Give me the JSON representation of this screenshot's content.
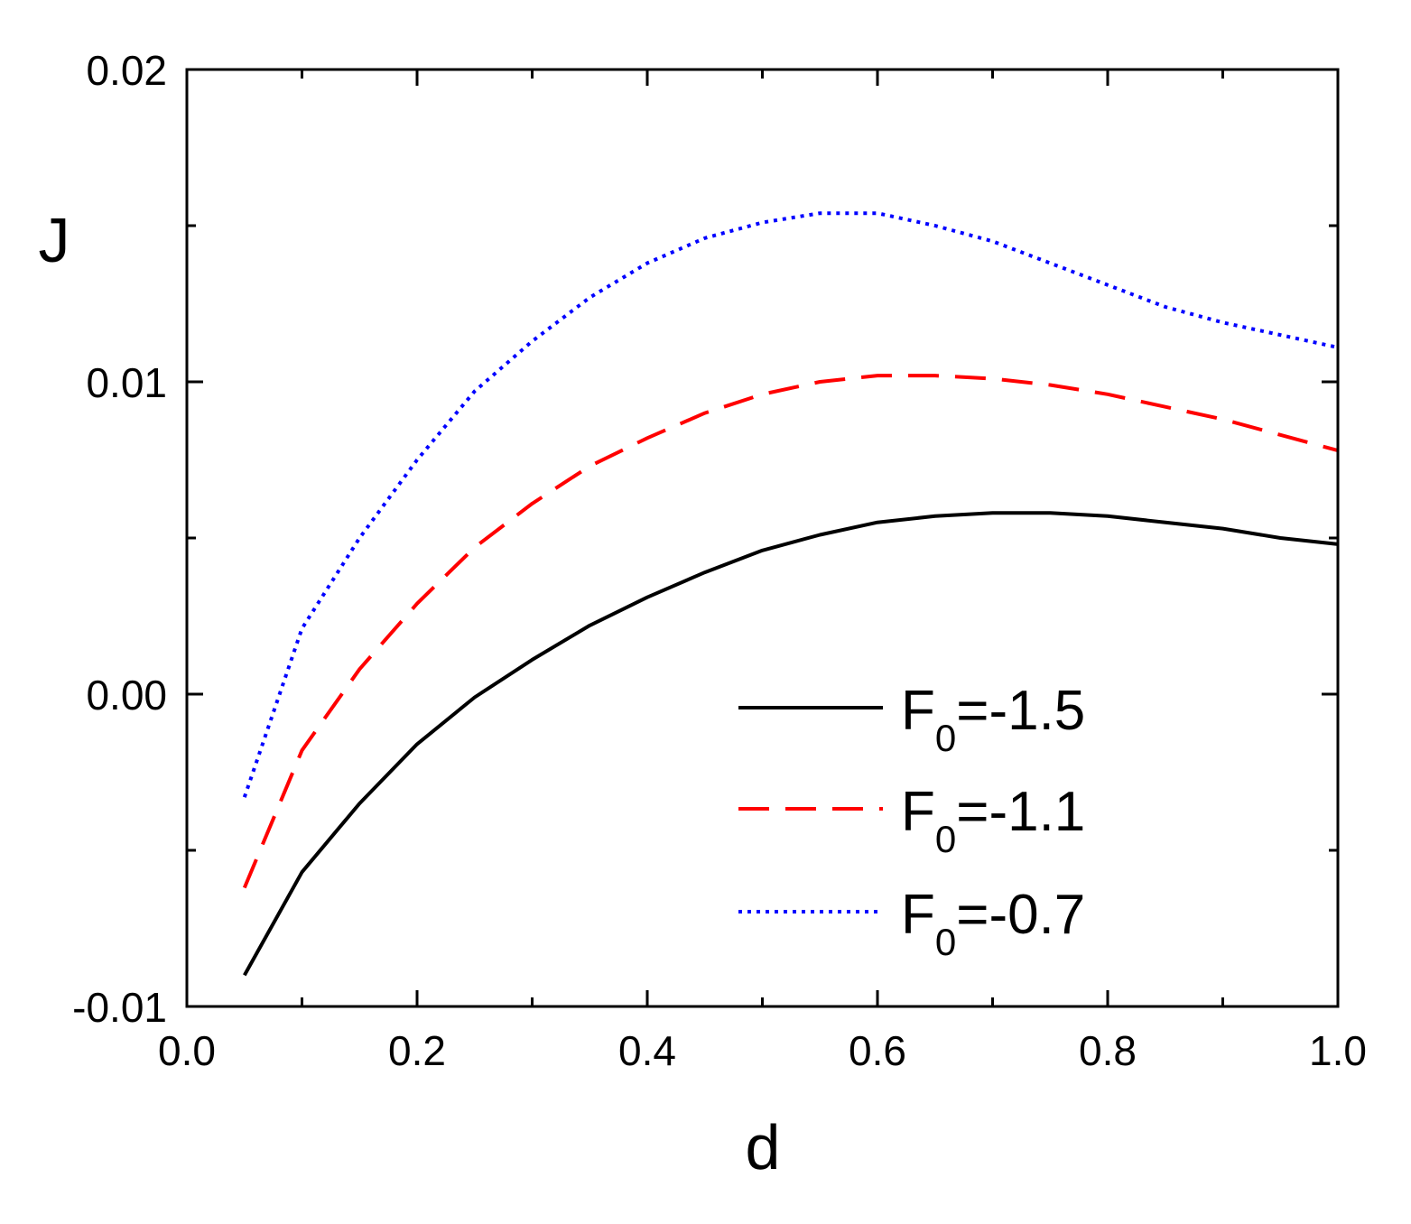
{
  "chart_data": {
    "type": "line",
    "xlabel": "d",
    "ylabel": "J",
    "xlim": [
      0.0,
      1.0
    ],
    "ylim": [
      -0.01,
      0.02
    ],
    "x_ticks": [
      0.0,
      0.2,
      0.4,
      0.6,
      0.8,
      1.0
    ],
    "x_tick_labels": [
      "0.0",
      "0.2",
      "0.4",
      "0.6",
      "0.8",
      "1.0"
    ],
    "y_ticks": [
      -0.01,
      0.0,
      0.01,
      0.02
    ],
    "y_tick_labels": [
      "-0.01",
      "0.00",
      "0.01",
      "0.02"
    ],
    "grid": false,
    "legend_position": "bottom-right",
    "x": [
      0.05,
      0.1,
      0.15,
      0.2,
      0.25,
      0.3,
      0.35,
      0.4,
      0.45,
      0.5,
      0.55,
      0.6,
      0.65,
      0.7,
      0.75,
      0.8,
      0.85,
      0.9,
      0.95,
      1.0
    ],
    "series": [
      {
        "name": "F0=-1.5",
        "legend_main": "F",
        "legend_sub": "0",
        "legend_value": "=-1.5",
        "color": "#000000",
        "style": "solid",
        "values": [
          -0.009,
          -0.0057,
          -0.0035,
          -0.0016,
          -0.0001,
          0.0011,
          0.0022,
          0.0031,
          0.0039,
          0.0046,
          0.0051,
          0.0055,
          0.0057,
          0.0058,
          0.0058,
          0.0057,
          0.0055,
          0.0053,
          0.005,
          0.0048
        ]
      },
      {
        "name": "F0=-1.1",
        "legend_main": "F",
        "legend_sub": "0",
        "legend_value": "=-1.1",
        "color": "#ff0000",
        "style": "dashed",
        "values": [
          -0.0062,
          -0.0018,
          0.0008,
          0.0029,
          0.0047,
          0.0061,
          0.0073,
          0.0082,
          0.009,
          0.0096,
          0.01,
          0.0102,
          0.0102,
          0.0101,
          0.0099,
          0.0096,
          0.0092,
          0.0088,
          0.0083,
          0.0078
        ]
      },
      {
        "name": "F0=-0.7",
        "legend_main": "F",
        "legend_sub": "0",
        "legend_value": "=-0.7",
        "color": "#0000ff",
        "style": "dotted",
        "values": [
          -0.0033,
          0.0021,
          0.005,
          0.0075,
          0.0097,
          0.0113,
          0.0127,
          0.0138,
          0.0146,
          0.0151,
          0.0154,
          0.0154,
          0.015,
          0.0145,
          0.0138,
          0.0131,
          0.0124,
          0.0119,
          0.0115,
          0.0111
        ]
      }
    ]
  }
}
